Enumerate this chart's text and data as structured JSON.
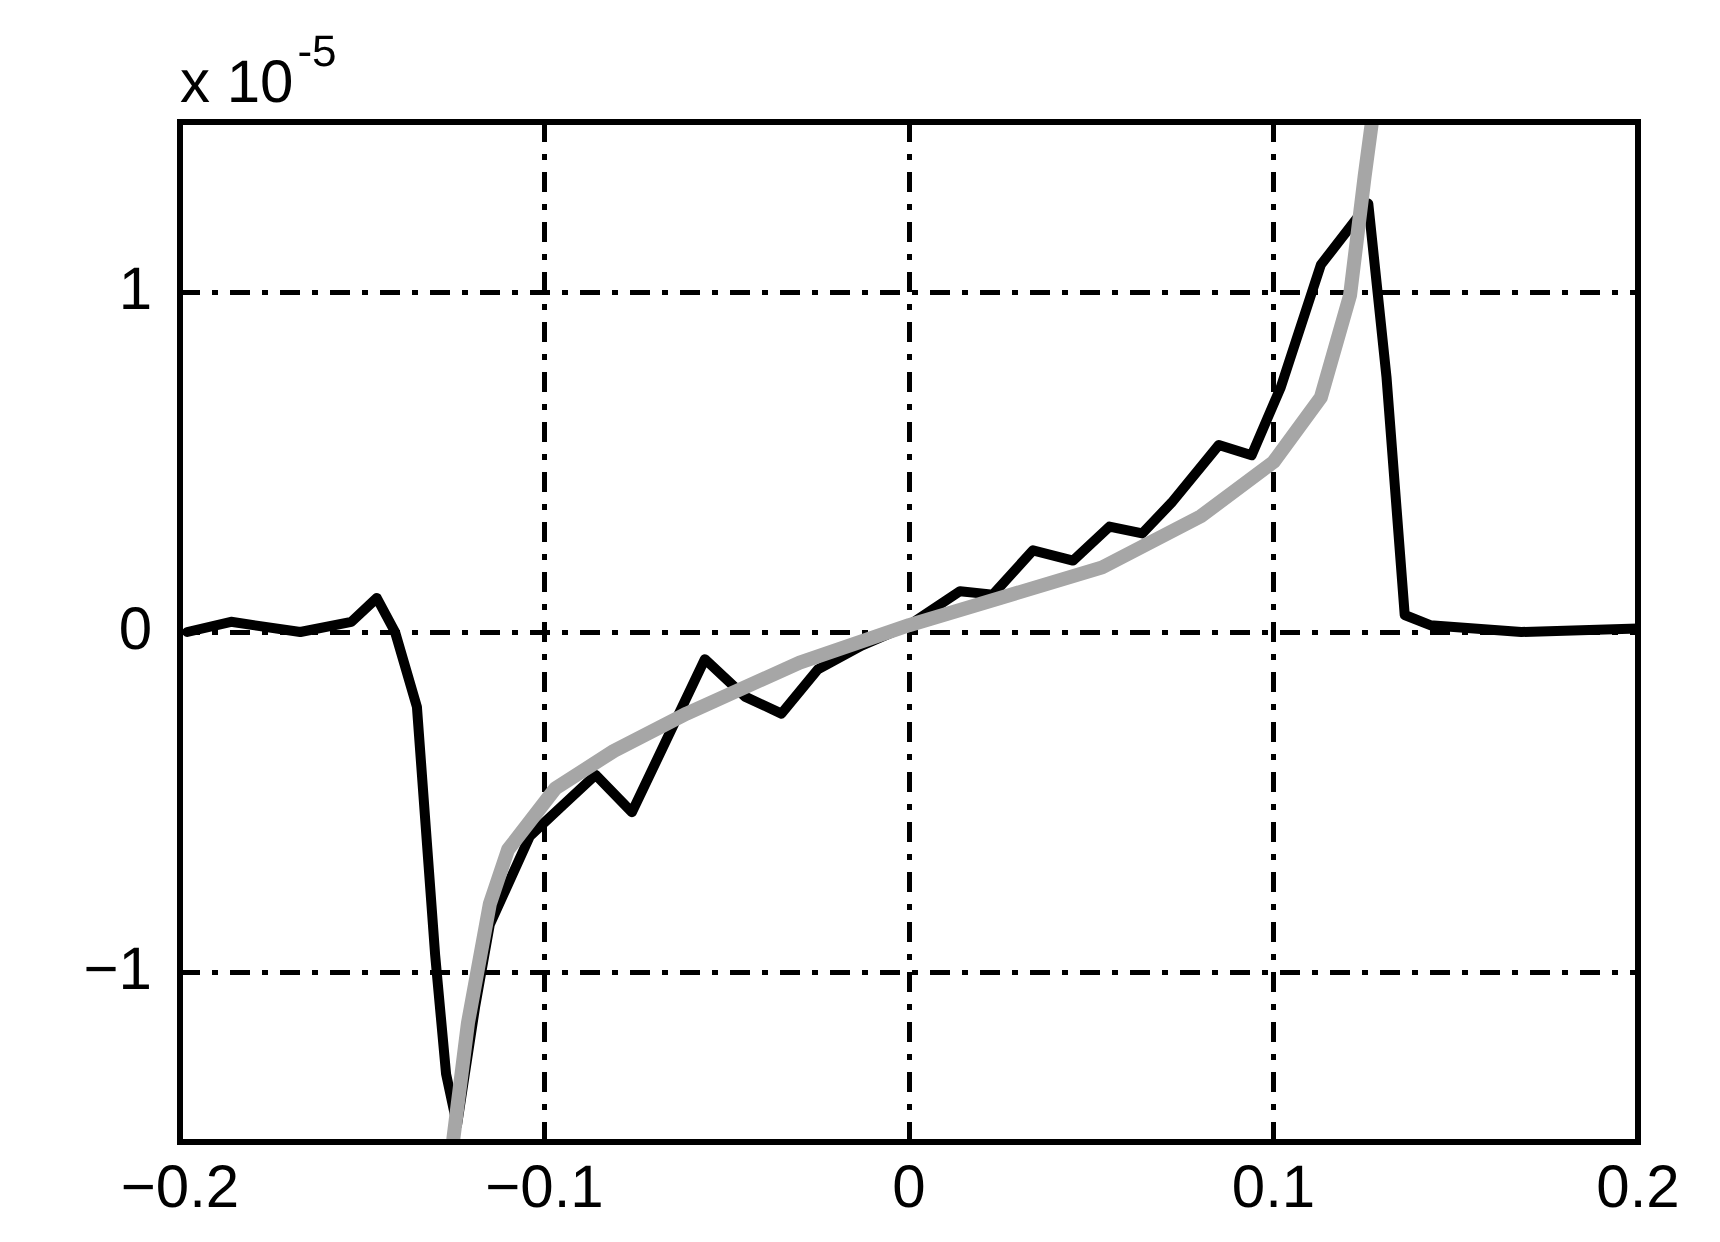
{
  "chart_data": {
    "type": "line",
    "annotations": [
      "x 10$^{-5}$"
    ],
    "xlim": [
      -0.2,
      0.2
    ],
    "xticks": [
      -0.2,
      -0.1,
      0,
      0.1,
      0.2
    ],
    "ylim": [
      -1.5,
      1.5
    ],
    "yticks": [
      -1,
      0,
      1
    ],
    "grid": true,
    "legend": false,
    "marker": "none",
    "line_style": "solid",
    "series": [
      {
        "color": "#000000",
        "x": [
          -0.198,
          -0.186,
          -0.167,
          -0.153,
          -0.146,
          -0.141,
          -0.135,
          -0.13,
          -0.127,
          -0.124,
          -0.119,
          -0.115,
          -0.104,
          -0.095,
          -0.086,
          -0.076,
          -0.056,
          -0.045,
          -0.035,
          -0.025,
          -0.013,
          0,
          0.014,
          0.023,
          0.034,
          0.045,
          0.055,
          0.064,
          0.072,
          0.085,
          0.094,
          0.102,
          0.113,
          0.126,
          0.131,
          0.136,
          0.143,
          0.168,
          0.2
        ],
        "values": [
          0,
          0.03,
          0,
          0.03,
          0.1,
          0,
          -0.22,
          -0.95,
          -1.3,
          -1.45,
          -1.1,
          -0.86,
          -0.6,
          -0.51,
          -0.42,
          -0.53,
          -0.08,
          -0.19,
          -0.24,
          -0.11,
          -0.04,
          0.02,
          0.12,
          0.11,
          0.24,
          0.21,
          0.31,
          0.29,
          0.38,
          0.55,
          0.52,
          0.72,
          1.08,
          1.26,
          0.75,
          0.05,
          0.02,
          0,
          0.01
        ]
      },
      {
        "color": "#a6a6a6",
        "x": [
          -0.125,
          -0.121,
          -0.115,
          -0.11,
          -0.097,
          -0.081,
          -0.061,
          -0.03,
          0,
          0.025,
          0.053,
          0.08,
          0.1,
          0.113,
          0.121,
          0.125,
          0.127
        ],
        "values": [
          -1.49,
          -1.15,
          -0.8,
          -0.64,
          -0.46,
          -0.35,
          -0.24,
          -0.09,
          0.02,
          0.1,
          0.19,
          0.34,
          0.5,
          0.69,
          0.99,
          1.34,
          1.5
        ]
      }
    ]
  }
}
